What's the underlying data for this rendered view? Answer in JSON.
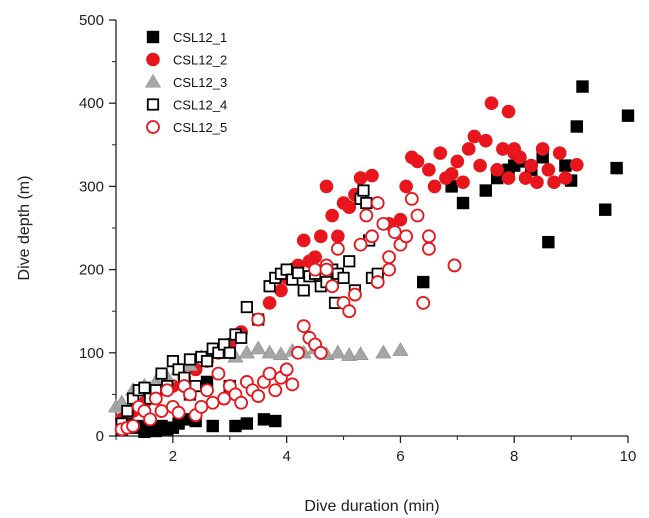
{
  "chart_data": {
    "type": "scatter",
    "xlabel": "Dive duration (min)",
    "ylabel": "Dive depth (m)",
    "xlim": [
      1,
      10
    ],
    "ylim": [
      0,
      500
    ],
    "xticks": [
      2,
      4,
      6,
      8,
      10
    ],
    "yticks": [
      0,
      100,
      200,
      300,
      400,
      500
    ],
    "grid": false,
    "legend_position": "top-left",
    "series": [
      {
        "name": "CSL12_1",
        "marker": "filled-square",
        "color": "#000000",
        "points": [
          [
            1.1,
            8
          ],
          [
            1.2,
            15
          ],
          [
            1.3,
            10
          ],
          [
            1.4,
            12
          ],
          [
            1.5,
            5
          ],
          [
            1.6,
            8
          ],
          [
            1.7,
            6
          ],
          [
            1.8,
            12
          ],
          [
            1.9,
            8
          ],
          [
            2.0,
            10
          ],
          [
            2.1,
            15
          ],
          [
            2.2,
            20
          ],
          [
            2.4,
            18
          ],
          [
            2.7,
            12
          ],
          [
            3.1,
            12
          ],
          [
            3.3,
            15
          ],
          [
            3.6,
            20
          ],
          [
            3.8,
            18
          ],
          [
            2.3,
            50
          ],
          [
            2.6,
            65
          ],
          [
            3.0,
            60
          ],
          [
            6.4,
            185
          ],
          [
            6.9,
            300
          ],
          [
            7.1,
            280
          ],
          [
            7.5,
            295
          ],
          [
            7.7,
            310
          ],
          [
            7.9,
            320
          ],
          [
            8.0,
            325
          ],
          [
            8.1,
            330
          ],
          [
            8.3,
            320
          ],
          [
            8.5,
            335
          ],
          [
            8.6,
            233
          ],
          [
            8.9,
            325
          ],
          [
            9.0,
            307
          ],
          [
            9.1,
            372
          ],
          [
            9.2,
            420
          ],
          [
            9.6,
            272
          ],
          [
            9.8,
            322
          ],
          [
            10.0,
            385
          ]
        ]
      },
      {
        "name": "CSL12_2",
        "marker": "filled-circle",
        "color": "#e8161c",
        "points": [
          [
            1.1,
            20
          ],
          [
            1.3,
            30
          ],
          [
            1.5,
            40
          ],
          [
            1.7,
            50
          ],
          [
            1.9,
            55
          ],
          [
            2.0,
            60
          ],
          [
            2.2,
            70
          ],
          [
            2.4,
            80
          ],
          [
            2.6,
            90
          ],
          [
            2.8,
            100
          ],
          [
            3.0,
            110
          ],
          [
            3.2,
            125
          ],
          [
            3.5,
            140
          ],
          [
            3.7,
            160
          ],
          [
            3.9,
            175
          ],
          [
            4.0,
            190
          ],
          [
            4.1,
            200
          ],
          [
            4.2,
            205
          ],
          [
            4.3,
            235
          ],
          [
            4.4,
            210
          ],
          [
            4.5,
            215
          ],
          [
            4.6,
            240
          ],
          [
            4.7,
            300
          ],
          [
            4.8,
            265
          ],
          [
            4.9,
            240
          ],
          [
            5.0,
            280
          ],
          [
            5.1,
            275
          ],
          [
            5.2,
            290
          ],
          [
            5.3,
            310
          ],
          [
            5.5,
            313
          ],
          [
            5.8,
            255
          ],
          [
            6.0,
            260
          ],
          [
            6.1,
            300
          ],
          [
            6.2,
            335
          ],
          [
            6.3,
            330
          ],
          [
            6.5,
            320
          ],
          [
            6.6,
            300
          ],
          [
            6.7,
            340
          ],
          [
            6.8,
            310
          ],
          [
            6.9,
            315
          ],
          [
            7.0,
            330
          ],
          [
            7.1,
            305
          ],
          [
            7.2,
            345
          ],
          [
            7.3,
            360
          ],
          [
            7.4,
            325
          ],
          [
            7.5,
            355
          ],
          [
            7.6,
            400
          ],
          [
            7.7,
            320
          ],
          [
            7.8,
            345
          ],
          [
            7.9,
            310
          ],
          [
            8.0,
            340
          ],
          [
            8.1,
            335
          ],
          [
            8.2,
            310
          ],
          [
            8.3,
            325
          ],
          [
            8.4,
            305
          ],
          [
            8.5,
            345
          ],
          [
            8.6,
            320
          ],
          [
            8.7,
            305
          ],
          [
            8.8,
            340
          ],
          [
            8.9,
            310
          ],
          [
            9.1,
            326
          ],
          [
            7.9,
            390
          ],
          [
            8.0,
            345
          ]
        ]
      },
      {
        "name": "CSL12_3",
        "marker": "filled-triangle",
        "color": "#a6a6a6",
        "points": [
          [
            1.0,
            35
          ],
          [
            1.1,
            40
          ],
          [
            1.3,
            55
          ],
          [
            1.5,
            60
          ],
          [
            1.7,
            65
          ],
          [
            1.9,
            70
          ],
          [
            2.1,
            80
          ],
          [
            2.3,
            85
          ],
          [
            2.5,
            95
          ],
          [
            2.7,
            100
          ],
          [
            2.9,
            105
          ],
          [
            3.1,
            95
          ],
          [
            3.3,
            100
          ],
          [
            3.5,
            105
          ],
          [
            3.7,
            100
          ],
          [
            3.9,
            98
          ],
          [
            4.1,
            102
          ],
          [
            4.3,
            100
          ],
          [
            4.5,
            105
          ],
          [
            4.7,
            98
          ],
          [
            4.9,
            100
          ],
          [
            5.1,
            97
          ],
          [
            5.3,
            98
          ],
          [
            5.7,
            100
          ],
          [
            6.0,
            103
          ]
        ]
      },
      {
        "name": "CSL12_4",
        "marker": "open-square",
        "color": "#000000",
        "points": [
          [
            1.1,
            15
          ],
          [
            1.2,
            30
          ],
          [
            1.3,
            45
          ],
          [
            1.4,
            55
          ],
          [
            1.5,
            58
          ],
          [
            1.6,
            45
          ],
          [
            1.7,
            55
          ],
          [
            1.8,
            75
          ],
          [
            1.9,
            60
          ],
          [
            2.0,
            90
          ],
          [
            2.1,
            80
          ],
          [
            2.2,
            70
          ],
          [
            2.3,
            92
          ],
          [
            2.4,
            60
          ],
          [
            2.5,
            95
          ],
          [
            2.6,
            90
          ],
          [
            2.7,
            105
          ],
          [
            2.8,
            100
          ],
          [
            2.9,
            110
          ],
          [
            3.0,
            100
          ],
          [
            3.1,
            122
          ],
          [
            3.2,
            118
          ],
          [
            3.3,
            155
          ],
          [
            3.5,
            140
          ],
          [
            3.7,
            180
          ],
          [
            3.8,
            190
          ],
          [
            3.9,
            195
          ],
          [
            4.0,
            200
          ],
          [
            4.1,
            188
          ],
          [
            4.2,
            196
          ],
          [
            4.3,
            175
          ],
          [
            4.4,
            192
          ],
          [
            4.5,
            195
          ],
          [
            4.6,
            180
          ],
          [
            4.7,
            185
          ],
          [
            4.8,
            200
          ],
          [
            4.9,
            195
          ],
          [
            5.0,
            190
          ],
          [
            5.1,
            210
          ],
          [
            5.2,
            175
          ],
          [
            5.3,
            285
          ],
          [
            5.35,
            295
          ],
          [
            5.4,
            280
          ],
          [
            5.45,
            235
          ],
          [
            5.5,
            190
          ],
          [
            5.6,
            195
          ],
          [
            4.85,
            160
          ]
        ]
      },
      {
        "name": "CSL12_5",
        "marker": "open-circle",
        "color": "#e8161c",
        "points": [
          [
            1.1,
            8
          ],
          [
            1.2,
            10
          ],
          [
            1.3,
            12
          ],
          [
            1.4,
            35
          ],
          [
            1.5,
            30
          ],
          [
            1.6,
            20
          ],
          [
            1.7,
            45
          ],
          [
            1.8,
            30
          ],
          [
            1.9,
            55
          ],
          [
            2.0,
            35
          ],
          [
            2.1,
            28
          ],
          [
            2.2,
            60
          ],
          [
            2.3,
            50
          ],
          [
            2.4,
            25
          ],
          [
            2.5,
            35
          ],
          [
            2.6,
            55
          ],
          [
            2.7,
            40
          ],
          [
            2.8,
            75
          ],
          [
            2.9,
            45
          ],
          [
            3.0,
            60
          ],
          [
            3.1,
            50
          ],
          [
            3.2,
            40
          ],
          [
            3.3,
            65
          ],
          [
            3.4,
            55
          ],
          [
            3.5,
            48
          ],
          [
            3.6,
            65
          ],
          [
            3.7,
            75
          ],
          [
            3.8,
            55
          ],
          [
            3.9,
            70
          ],
          [
            4.0,
            80
          ],
          [
            4.1,
            62
          ],
          [
            4.2,
            100
          ],
          [
            4.3,
            132
          ],
          [
            4.4,
            118
          ],
          [
            4.5,
            110
          ],
          [
            4.6,
            100
          ],
          [
            4.5,
            200
          ],
          [
            4.7,
            205
          ],
          [
            4.8,
            180
          ],
          [
            4.9,
            225
          ],
          [
            5.0,
            160
          ],
          [
            5.1,
            150
          ],
          [
            5.2,
            170
          ],
          [
            5.3,
            230
          ],
          [
            5.4,
            265
          ],
          [
            5.5,
            240
          ],
          [
            5.6,
            280
          ],
          [
            5.7,
            255
          ],
          [
            5.8,
            200
          ],
          [
            5.9,
            245
          ],
          [
            6.0,
            230
          ],
          [
            6.1,
            240
          ],
          [
            6.2,
            285
          ],
          [
            6.3,
            265
          ],
          [
            6.4,
            160
          ],
          [
            6.5,
            225
          ],
          [
            6.5,
            240
          ],
          [
            6.95,
            205
          ],
          [
            3.5,
            140
          ],
          [
            4.7,
            200
          ],
          [
            5.8,
            215
          ],
          [
            5.6,
            185
          ]
        ]
      }
    ]
  }
}
